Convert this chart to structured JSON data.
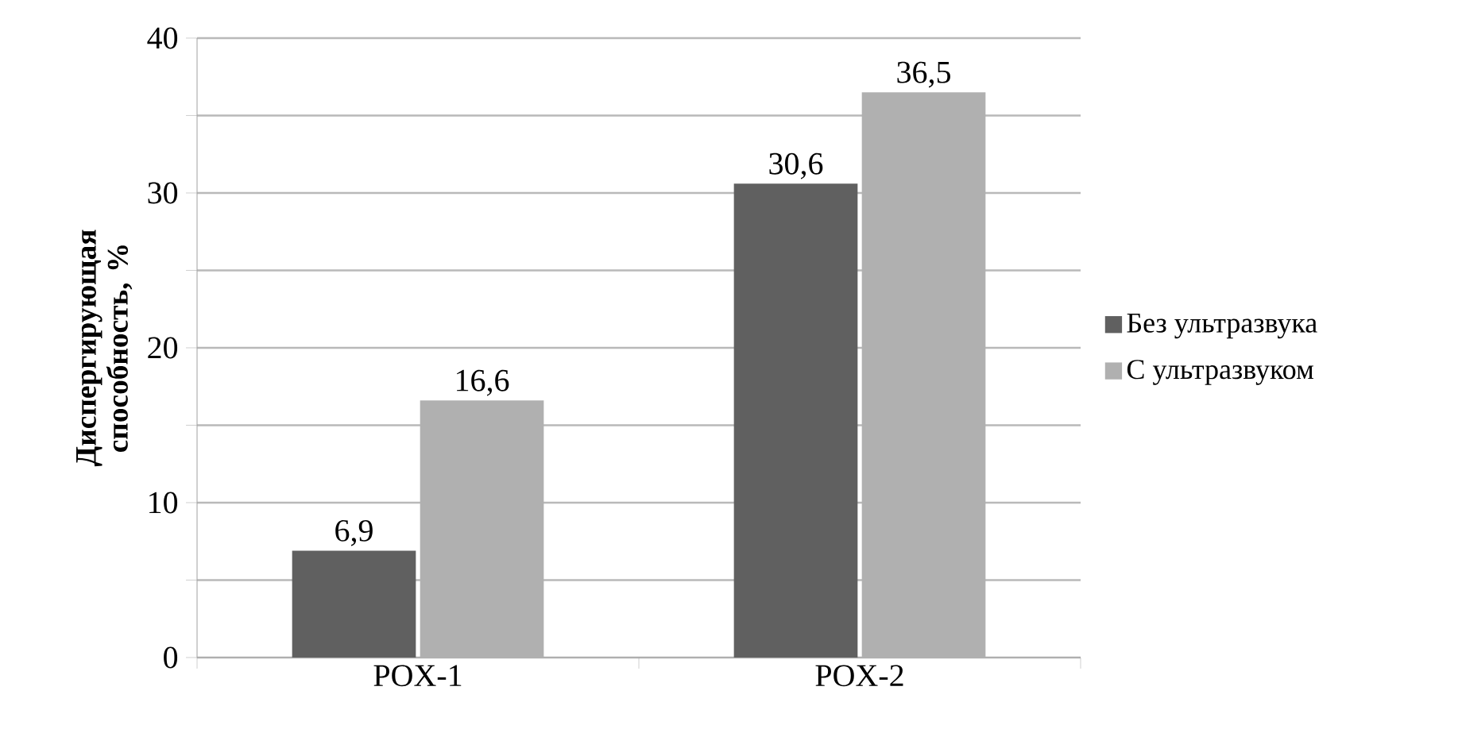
{
  "chart_data": {
    "type": "bar",
    "ylabel": "Диспергирующая способность, %",
    "categories": [
      "POX-1",
      "POX-2"
    ],
    "series": [
      {
        "name": "Без ультразвука",
        "color": "#606060",
        "values": [
          6.9,
          30.6
        ],
        "value_labels": [
          "6,9",
          "30,6"
        ]
      },
      {
        "name": "С ультразвуком",
        "color": "#b0b0b0",
        "values": [
          16.6,
          36.5
        ],
        "value_labels": [
          "16,6",
          "36,5"
        ]
      }
    ],
    "ylim": [
      0,
      40
    ],
    "yticks": [
      0,
      {
        "value": 5,
        "label": null
      },
      10,
      {
        "value": 15,
        "label": null
      },
      20,
      {
        "value": 25,
        "label": null
      },
      30,
      {
        "value": 35,
        "label": null
      },
      40
    ],
    "grid": "y",
    "legend": "right"
  }
}
